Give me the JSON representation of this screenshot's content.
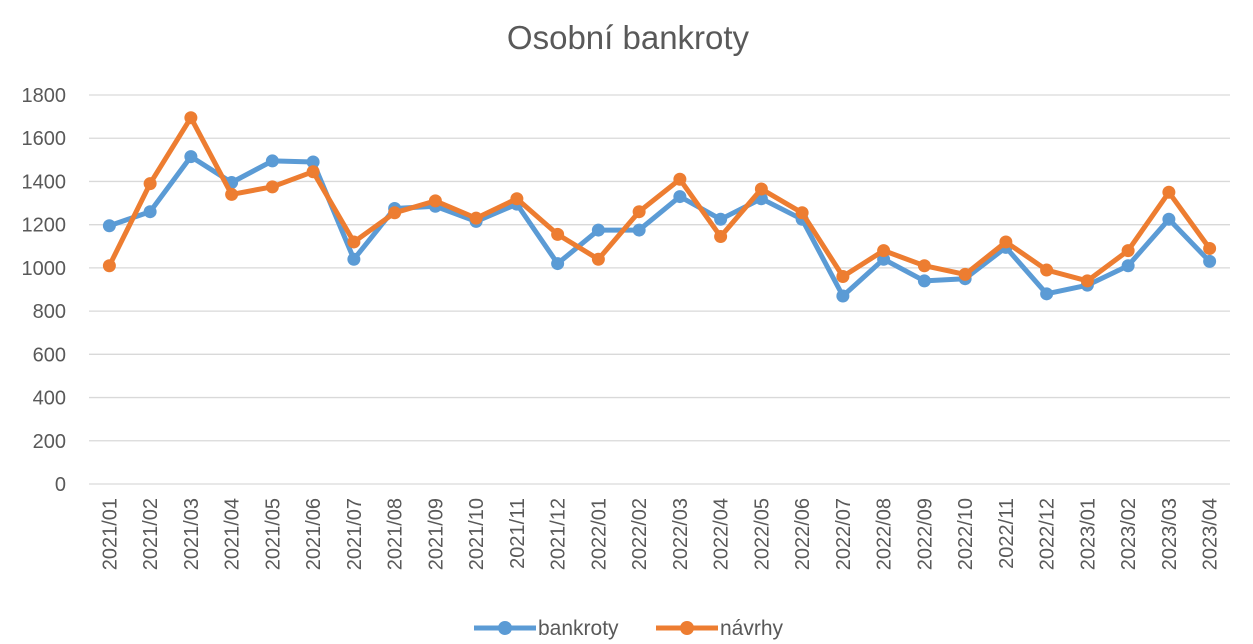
{
  "chart_data": {
    "type": "line",
    "title": "Osobní bankroty",
    "xlabel": "",
    "ylabel": "",
    "ylim": [
      0,
      1800
    ],
    "ytick_step": 200,
    "grid": true,
    "legend_position": "bottom",
    "categories": [
      "2021/01",
      "2021/02",
      "2021/03",
      "2021/04",
      "2021/05",
      "2021/06",
      "2021/07",
      "2021/08",
      "2021/09",
      "2021/10",
      "2021/11",
      "2021/12",
      "2022/01",
      "2022/02",
      "2022/03",
      "2022/04",
      "2022/05",
      "2022/06",
      "2022/07",
      "2022/08",
      "2022/09",
      "2022/10",
      "2022/11",
      "2022/12",
      "2023/01",
      "2023/02",
      "2023/03",
      "2023/04"
    ],
    "series": [
      {
        "name": "bankroty",
        "color": "#5B9BD5",
        "values": [
          1195,
          1260,
          1515,
          1395,
          1495,
          1490,
          1040,
          1275,
          1285,
          1215,
          1295,
          1020,
          1175,
          1175,
          1330,
          1225,
          1320,
          1225,
          870,
          1040,
          940,
          950,
          1095,
          880,
          920,
          1010,
          1225,
          1030
        ]
      },
      {
        "name": "návrhy",
        "color": "#ED7D31",
        "values": [
          1010,
          1390,
          1695,
          1340,
          1375,
          1445,
          1120,
          1255,
          1310,
          1230,
          1320,
          1155,
          1040,
          1260,
          1410,
          1145,
          1365,
          1255,
          960,
          1080,
          1010,
          970,
          1120,
          990,
          940,
          1080,
          1350,
          1090
        ]
      }
    ]
  }
}
